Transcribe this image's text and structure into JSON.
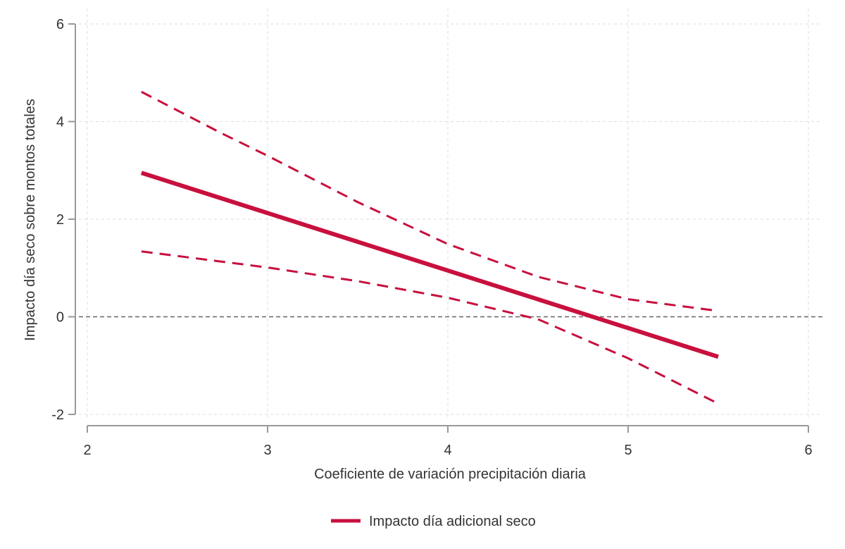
{
  "chart_data": {
    "type": "line",
    "title": "",
    "xlabel": "Coeficiente de variación precipitación diaria",
    "ylabel": "Impacto día seco sobre montos totales",
    "xlim": [
      2,
      6
    ],
    "ylim": [
      -2,
      6
    ],
    "xticks": [
      "2",
      "3",
      "4",
      "5",
      "6"
    ],
    "yticks": [
      "-2",
      "0",
      "2",
      "4",
      "6"
    ],
    "grid": true,
    "reference_line_y": 0,
    "legend_position": "bottom-center",
    "series": [
      {
        "name": "Impacto día adicional seco",
        "style": "solid",
        "in_legend": true,
        "x": [
          2.3,
          5.5
        ],
        "y": [
          2.95,
          -0.82
        ]
      },
      {
        "name": "Upper CI",
        "style": "dashed",
        "in_legend": false,
        "x": [
          2.3,
          2.75,
          3.0,
          3.5,
          4.0,
          4.5,
          5.0,
          5.5
        ],
        "y": [
          4.61,
          3.75,
          3.3,
          2.35,
          1.49,
          0.82,
          0.36,
          0.12
        ]
      },
      {
        "name": "Lower CI",
        "style": "dashed",
        "in_legend": false,
        "x": [
          2.3,
          3.0,
          3.5,
          4.0,
          4.5,
          5.0,
          5.5
        ],
        "y": [
          1.34,
          1.01,
          0.73,
          0.39,
          -0.05,
          -0.85,
          -1.78
        ]
      }
    ],
    "colors": {
      "series": "#c8103e",
      "axis": "#999999",
      "grid": "#dddddd",
      "reference": "#666666"
    }
  }
}
